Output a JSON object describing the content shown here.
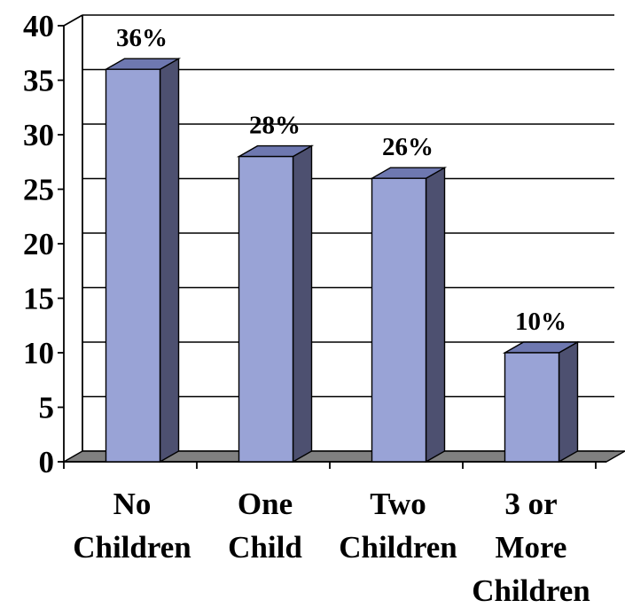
{
  "chart_data": {
    "type": "bar",
    "style": "3d-column",
    "title": "",
    "xlabel": "",
    "ylabel": "",
    "categories": [
      [
        "No",
        "Children"
      ],
      [
        "One",
        "Child"
      ],
      [
        "Two",
        "Children"
      ],
      [
        "3 or",
        "More",
        "Children"
      ]
    ],
    "values": [
      36,
      28,
      26,
      10
    ],
    "data_labels": [
      "36%",
      "28%",
      "26%",
      "10%"
    ],
    "ylim": [
      0,
      40
    ],
    "yticks": [
      0,
      5,
      10,
      15,
      20,
      25,
      30,
      35,
      40
    ],
    "grid": true,
    "legend": "none",
    "colors": {
      "bar_front": "#99a3d6",
      "bar_side": "#4d5070",
      "bar_top": "#6e78b0",
      "floor": "#808080",
      "grid": "#000000",
      "text": "#000000"
    }
  }
}
